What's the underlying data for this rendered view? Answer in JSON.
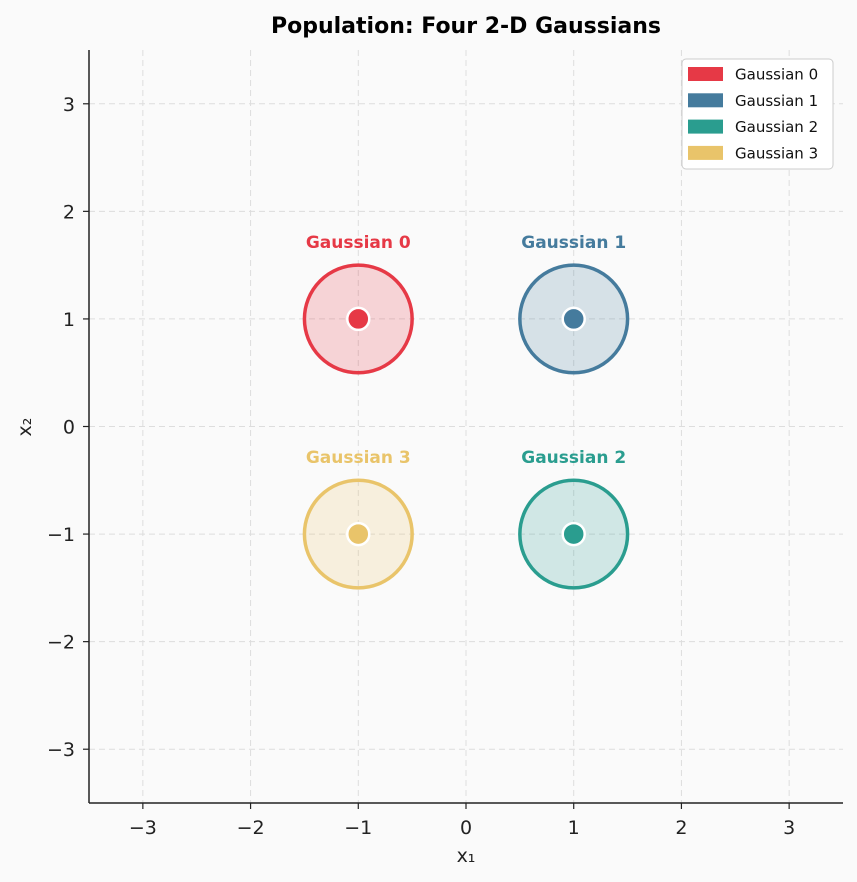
{
  "chart_data": {
    "type": "scatter",
    "title": "Population: Four 2-D Gaussians",
    "xlabel": "x₁",
    "ylabel": "x₂",
    "xlim": [
      -3.5,
      3.5
    ],
    "ylim": [
      -3.5,
      3.5
    ],
    "xticks": [
      -3,
      -2,
      -1,
      0,
      1,
      2,
      3
    ],
    "yticks": [
      -3,
      -2,
      -1,
      0,
      1,
      2,
      3
    ],
    "xtick_labels": [
      "−3",
      "−2",
      "−1",
      "0",
      "1",
      "2",
      "3"
    ],
    "ytick_labels": [
      "−3",
      "−2",
      "−1",
      "0",
      "1",
      "2",
      "3"
    ],
    "grid": true,
    "legend_position": "top-right",
    "series": [
      {
        "name": "Gaussian 0",
        "mean": [
          -1,
          1
        ],
        "radius": 0.5,
        "color": "#e63946"
      },
      {
        "name": "Gaussian 1",
        "mean": [
          1,
          1
        ],
        "radius": 0.5,
        "color": "#457b9d"
      },
      {
        "name": "Gaussian 2",
        "mean": [
          1,
          -1
        ],
        "radius": 0.5,
        "color": "#2a9d8f"
      },
      {
        "name": "Gaussian 3",
        "mean": [
          -1,
          -1
        ],
        "radius": 0.5,
        "color": "#e9c46a"
      }
    ]
  }
}
